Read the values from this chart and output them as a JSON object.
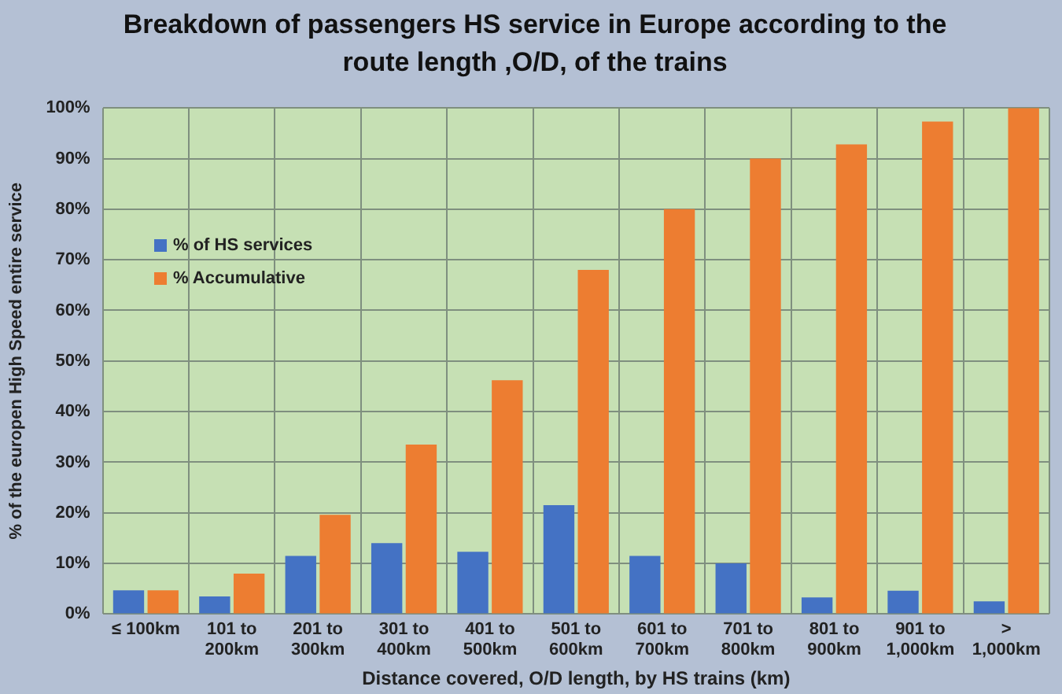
{
  "chart_data": {
    "type": "bar",
    "title": "Breakdown of passengers HS service in Europe according to the route length ,O/D, of the trains",
    "xlabel": "Distance covered, O/D length, by HS trains (km)",
    "ylabel": "% of the europen High Speed entire service",
    "categories": [
      "≤ 100km",
      "101 to\n200km",
      "201 to\n300km",
      "301 to\n400km",
      "401 to\n500km",
      "501 to\n600km",
      "601 to\n700km",
      "701 to\n800km",
      "801 to\n900km",
      "901 to\n1,000km",
      ">\n1,000km"
    ],
    "series": [
      {
        "name": "% of HS services",
        "color": "#4472c4",
        "values": [
          4.7,
          3.5,
          11.5,
          14,
          12.3,
          21.5,
          11.5,
          10,
          3.3,
          4.6,
          2.5
        ]
      },
      {
        "name": "% Accumulative",
        "color": "#ed7d31",
        "values": [
          4.7,
          8,
          19.6,
          33.5,
          46.2,
          68,
          80,
          90,
          92.8,
          97.3,
          100
        ]
      }
    ],
    "ylim": [
      0,
      100
    ],
    "yticks": [
      {
        "value": 0,
        "label": "0%"
      },
      {
        "value": 10,
        "label": "10%"
      },
      {
        "value": 20,
        "label": "20%"
      },
      {
        "value": 30,
        "label": "30%"
      },
      {
        "value": 40,
        "label": "40%"
      },
      {
        "value": 50,
        "label": "50%"
      },
      {
        "value": 60,
        "label": "60%"
      },
      {
        "value": 70,
        "label": "70%"
      },
      {
        "value": 80,
        "label": "80%"
      },
      {
        "value": 90,
        "label": "90%"
      },
      {
        "value": 100,
        "label": "100%"
      }
    ],
    "grid": true,
    "legend": "top left"
  }
}
